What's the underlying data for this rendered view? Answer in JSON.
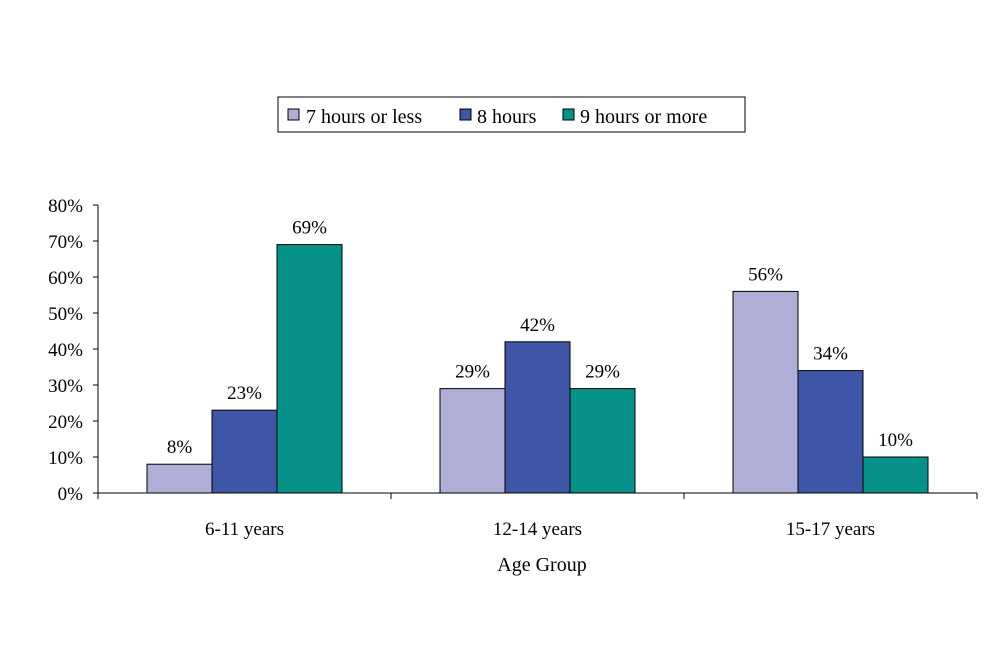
{
  "chart_data": {
    "type": "bar",
    "title": "",
    "xlabel": "Age Group",
    "ylabel": "",
    "categories": [
      "6-11 years",
      "12-14 years",
      "15-17 years"
    ],
    "series": [
      {
        "name": "7 hours or less",
        "values": [
          8,
          29,
          56
        ],
        "labels": [
          "8%",
          "29%",
          "56%"
        ],
        "color": "#aeaed6"
      },
      {
        "name": "8 hours",
        "values": [
          23,
          42,
          34
        ],
        "labels": [
          "23%",
          "42%",
          "34%"
        ],
        "color": "#3f55a6"
      },
      {
        "name": "9 hours or more",
        "values": [
          69,
          29,
          10
        ],
        "labels": [
          "69%",
          "29%",
          "10%"
        ],
        "color": "#079289"
      }
    ],
    "ylim": [
      0,
      80
    ],
    "yticks": [
      0,
      10,
      20,
      30,
      40,
      50,
      60,
      70,
      80
    ],
    "ytick_labels": [
      "0%",
      "10%",
      "20%",
      "30%",
      "40%",
      "50%",
      "60%",
      "70%",
      "80%"
    ],
    "grid": false,
    "legend": "top-center",
    "bar_outline_color": "#000000"
  }
}
